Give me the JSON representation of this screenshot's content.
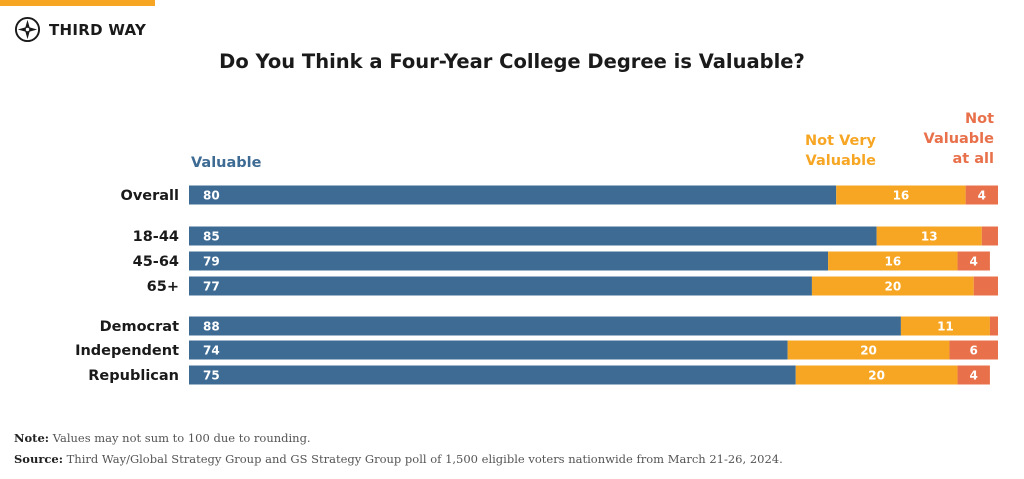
{
  "brand": {
    "name": "THIRD WAY"
  },
  "colors": {
    "valuable": "#3e6b94",
    "not_very_valuable": "#f6a623",
    "not_valuable": "#e8704a",
    "accent": "#f6a623"
  },
  "chart_data": {
    "type": "bar",
    "orientation": "horizontal",
    "stacked": true,
    "title": "Do You Think a Four-Year College Degree is Valuable?",
    "categories": [
      "Overall",
      "18-44",
      "45-64",
      "65+",
      "Democrat",
      "Independent",
      "Republican"
    ],
    "groups": [
      [
        "Overall"
      ],
      [
        "18-44",
        "45-64",
        "65+"
      ],
      [
        "Democrat",
        "Independent",
        "Republican"
      ]
    ],
    "series": [
      {
        "name": "Valuable",
        "values": [
          80,
          85,
          79,
          77,
          88,
          74,
          75
        ],
        "labels": [
          "80",
          "85",
          "79",
          "77",
          "88",
          "74",
          "75"
        ]
      },
      {
        "name": "Not Very Valuable",
        "values": [
          16,
          13,
          16,
          20,
          11,
          20,
          20
        ],
        "labels": [
          "16",
          "13",
          "16",
          "20",
          "11",
          "20",
          "20"
        ]
      },
      {
        "name": "Not Valuable at all",
        "values": [
          4,
          2,
          4,
          3,
          1,
          6,
          4
        ],
        "labels": [
          "4",
          "",
          "4",
          "",
          "",
          "6",
          "4"
        ]
      }
    ],
    "legend_lines": {
      "valuable": [
        "Valuable"
      ],
      "not_very_valuable": [
        "Not Very",
        "Valuable"
      ],
      "not_valuable": [
        "Not",
        "Valuable",
        "at all"
      ]
    },
    "xlim": [
      0,
      100
    ],
    "grid": false
  },
  "notes": {
    "note_label": "Note:",
    "note_text": " Values may not sum to 100 due to rounding.",
    "source_label": "Source:",
    "source_text": " Third Way/Global Strategy Group and GS Strategy Group poll of 1,500 eligible voters nationwide from March 21-26, 2024."
  }
}
